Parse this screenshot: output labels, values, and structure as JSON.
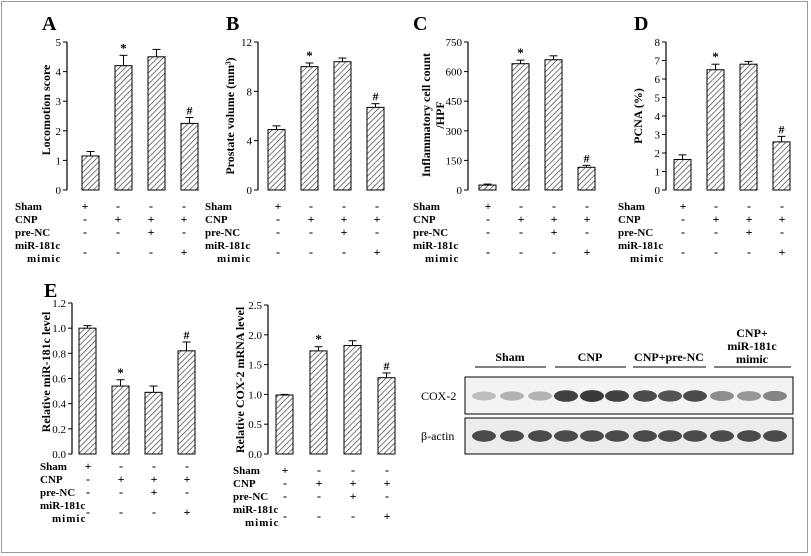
{
  "figure": {
    "background": "#ffffff",
    "bar_fill": "#ffffff",
    "bar_hatch": "#333333"
  },
  "treatment_rows": [
    "Sham",
    "CNP",
    "pre-NC",
    "miR-181c",
    "mimic"
  ],
  "chart_data": [
    {
      "panel_letter": "A",
      "type": "bar",
      "ylabel": "Locomotion score",
      "ylim": [
        0,
        5
      ],
      "yticks": [
        "0",
        "1",
        "2",
        "3",
        "4",
        "5"
      ],
      "categories": [
        "Sham",
        "CNP",
        "CNP+pre-NC",
        "CNP+miR-181c mimic"
      ],
      "values": [
        1.15,
        4.2,
        4.5,
        2.25
      ],
      "errors": [
        0.15,
        0.35,
        0.25,
        0.2
      ],
      "marks": [
        "",
        "*",
        "",
        "#"
      ],
      "signs": [
        [
          "+",
          "-",
          "-",
          "-"
        ],
        [
          "-",
          "+",
          "+",
          "+"
        ],
        [
          "-",
          "-",
          "+",
          "-"
        ],
        [
          "-",
          "-",
          "-",
          "+"
        ]
      ]
    },
    {
      "panel_letter": "B",
      "type": "bar",
      "ylabel": "Prostate volume (mm³)",
      "ylim": [
        0,
        12
      ],
      "yticks": [
        "0",
        "4",
        "8",
        "12"
      ],
      "categories": [
        "Sham",
        "CNP",
        "CNP+pre-NC",
        "CNP+miR-181c mimic"
      ],
      "values": [
        4.9,
        10.0,
        10.4,
        6.7
      ],
      "errors": [
        0.3,
        0.3,
        0.3,
        0.3
      ],
      "marks": [
        "",
        "*",
        "",
        "#"
      ],
      "signs": [
        [
          "+",
          "-",
          "-",
          "-"
        ],
        [
          "-",
          "+",
          "+",
          "+"
        ],
        [
          "-",
          "-",
          "+",
          "-"
        ],
        [
          "-",
          "-",
          "-",
          "+"
        ]
      ]
    },
    {
      "panel_letter": "C",
      "type": "bar",
      "ylabel": "Inflammatory cell count /HPF",
      "ylim": [
        0,
        750
      ],
      "yticks": [
        "0",
        "150",
        "300",
        "450",
        "600",
        "750"
      ],
      "categories": [
        "Sham",
        "CNP",
        "CNP+pre-NC",
        "CNP+miR-181c mimic"
      ],
      "values": [
        25,
        640,
        660,
        115
      ],
      "errors": [
        5,
        18,
        20,
        10
      ],
      "marks": [
        "",
        "*",
        "",
        "#"
      ],
      "signs": [
        [
          "+",
          "-",
          "-",
          "-"
        ],
        [
          "-",
          "+",
          "+",
          "+"
        ],
        [
          "-",
          "-",
          "+",
          "-"
        ],
        [
          "-",
          "-",
          "-",
          "+"
        ]
      ]
    },
    {
      "panel_letter": "D",
      "type": "bar",
      "ylabel": "PCNA (%)",
      "ylim": [
        0,
        8
      ],
      "yticks": [
        "0",
        "1",
        "2",
        "3",
        "4",
        "5",
        "6",
        "7",
        "8"
      ],
      "categories": [
        "Sham",
        "CNP",
        "CNP+pre-NC",
        "CNP+miR-181c mimic"
      ],
      "values": [
        1.65,
        6.5,
        6.8,
        2.6
      ],
      "errors": [
        0.25,
        0.3,
        0.15,
        0.3
      ],
      "marks": [
        "",
        "*",
        "",
        "#"
      ],
      "signs": [
        [
          "+",
          "-",
          "-",
          "-"
        ],
        [
          "-",
          "+",
          "+",
          "+"
        ],
        [
          "-",
          "-",
          "+",
          "-"
        ],
        [
          "-",
          "-",
          "-",
          "+"
        ]
      ]
    },
    {
      "panel_letter": "E",
      "type": "bar",
      "ylabel": "Relative miR-181c level",
      "ylim": [
        0,
        1.2
      ],
      "yticks": [
        "0.0",
        "0.2",
        "0.4",
        "0.6",
        "0.8",
        "1.0",
        "1.2"
      ],
      "categories": [
        "Sham",
        "CNP",
        "CNP+pre-NC",
        "CNP+miR-181c mimic"
      ],
      "values": [
        1.0,
        0.54,
        0.49,
        0.82
      ],
      "errors": [
        0.02,
        0.05,
        0.05,
        0.07
      ],
      "marks": [
        "",
        "*",
        "",
        "#"
      ],
      "signs": [
        [
          "+",
          "-",
          "-",
          "-"
        ],
        [
          "-",
          "+",
          "+",
          "+"
        ],
        [
          "-",
          "-",
          "+",
          "-"
        ],
        [
          "-",
          "-",
          "-",
          "+"
        ]
      ]
    },
    {
      "panel_letter": "",
      "type": "bar",
      "ylabel": "Relative COX-2 mRNA level",
      "ylim": [
        0,
        2.5
      ],
      "yticks": [
        "0.0",
        "0.5",
        "1.0",
        "1.5",
        "2.0",
        "2.5"
      ],
      "categories": [
        "Sham",
        "CNP",
        "CNP+pre-NC",
        "CNP+miR-181c mimic"
      ],
      "values": [
        0.99,
        1.73,
        1.82,
        1.28
      ],
      "errors": [
        0.01,
        0.07,
        0.08,
        0.08
      ],
      "marks": [
        "",
        "*",
        "",
        "#"
      ],
      "signs": [
        [
          "+",
          "-",
          "-",
          "-"
        ],
        [
          "-",
          "+",
          "+",
          "+"
        ],
        [
          "-",
          "-",
          "+",
          "-"
        ],
        [
          "-",
          "-",
          "-",
          "+"
        ]
      ]
    }
  ],
  "blot": {
    "group_labels": [
      "Sham",
      "CNP",
      "CNP+pre-NC",
      "CNP+",
      "miR-181c",
      "mimic"
    ],
    "row_labels": [
      "COX-2",
      "β-actin"
    ],
    "cox2_band_levels": [
      0.25,
      0.3,
      0.3,
      0.9,
      0.95,
      0.9,
      0.85,
      0.8,
      0.85,
      0.5,
      0.45,
      0.55
    ],
    "actin_band_levels": [
      0.85,
      0.85,
      0.85,
      0.85,
      0.85,
      0.85,
      0.85,
      0.85,
      0.85,
      0.85,
      0.85,
      0.85
    ]
  }
}
